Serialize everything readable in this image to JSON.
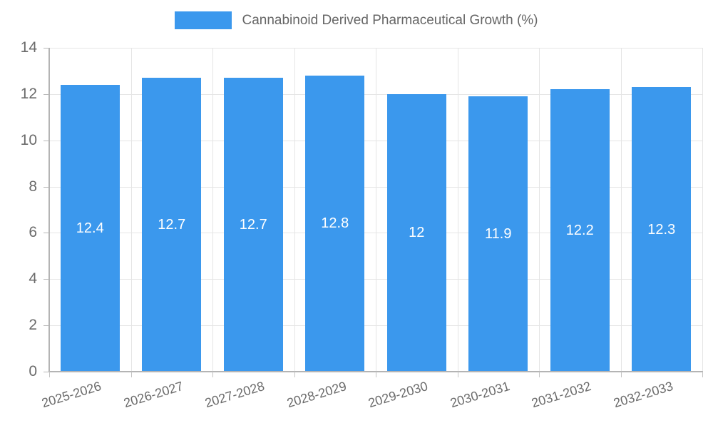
{
  "legend": {
    "label": "Cannabinoid Derived Pharmaceutical Growth (%)"
  },
  "chart_data": {
    "type": "bar",
    "title": "Cannabinoid Derived Pharmaceutical Growth (%)",
    "categories": [
      "2025-2026",
      "2026-2027",
      "2027-2028",
      "2028-2029",
      "2029-2030",
      "2030-2031",
      "2031-2032",
      "2032-2033"
    ],
    "values": [
      12.4,
      12.7,
      12.7,
      12.8,
      12,
      11.9,
      12.2,
      12.3
    ],
    "xlabel": "",
    "ylabel": "",
    "ylim": [
      0,
      14
    ],
    "yticks": [
      0,
      2,
      4,
      6,
      8,
      10,
      12,
      14
    ],
    "grid": true,
    "legend_position": "top",
    "bar_color": "#3b98ed",
    "value_label_color": "#ffffff",
    "axis_label_color": "#6b6b6b",
    "legend_text_color": "#666666",
    "grid_color": "#e5e5e5",
    "axis_line_color": "#b4b4b4"
  }
}
